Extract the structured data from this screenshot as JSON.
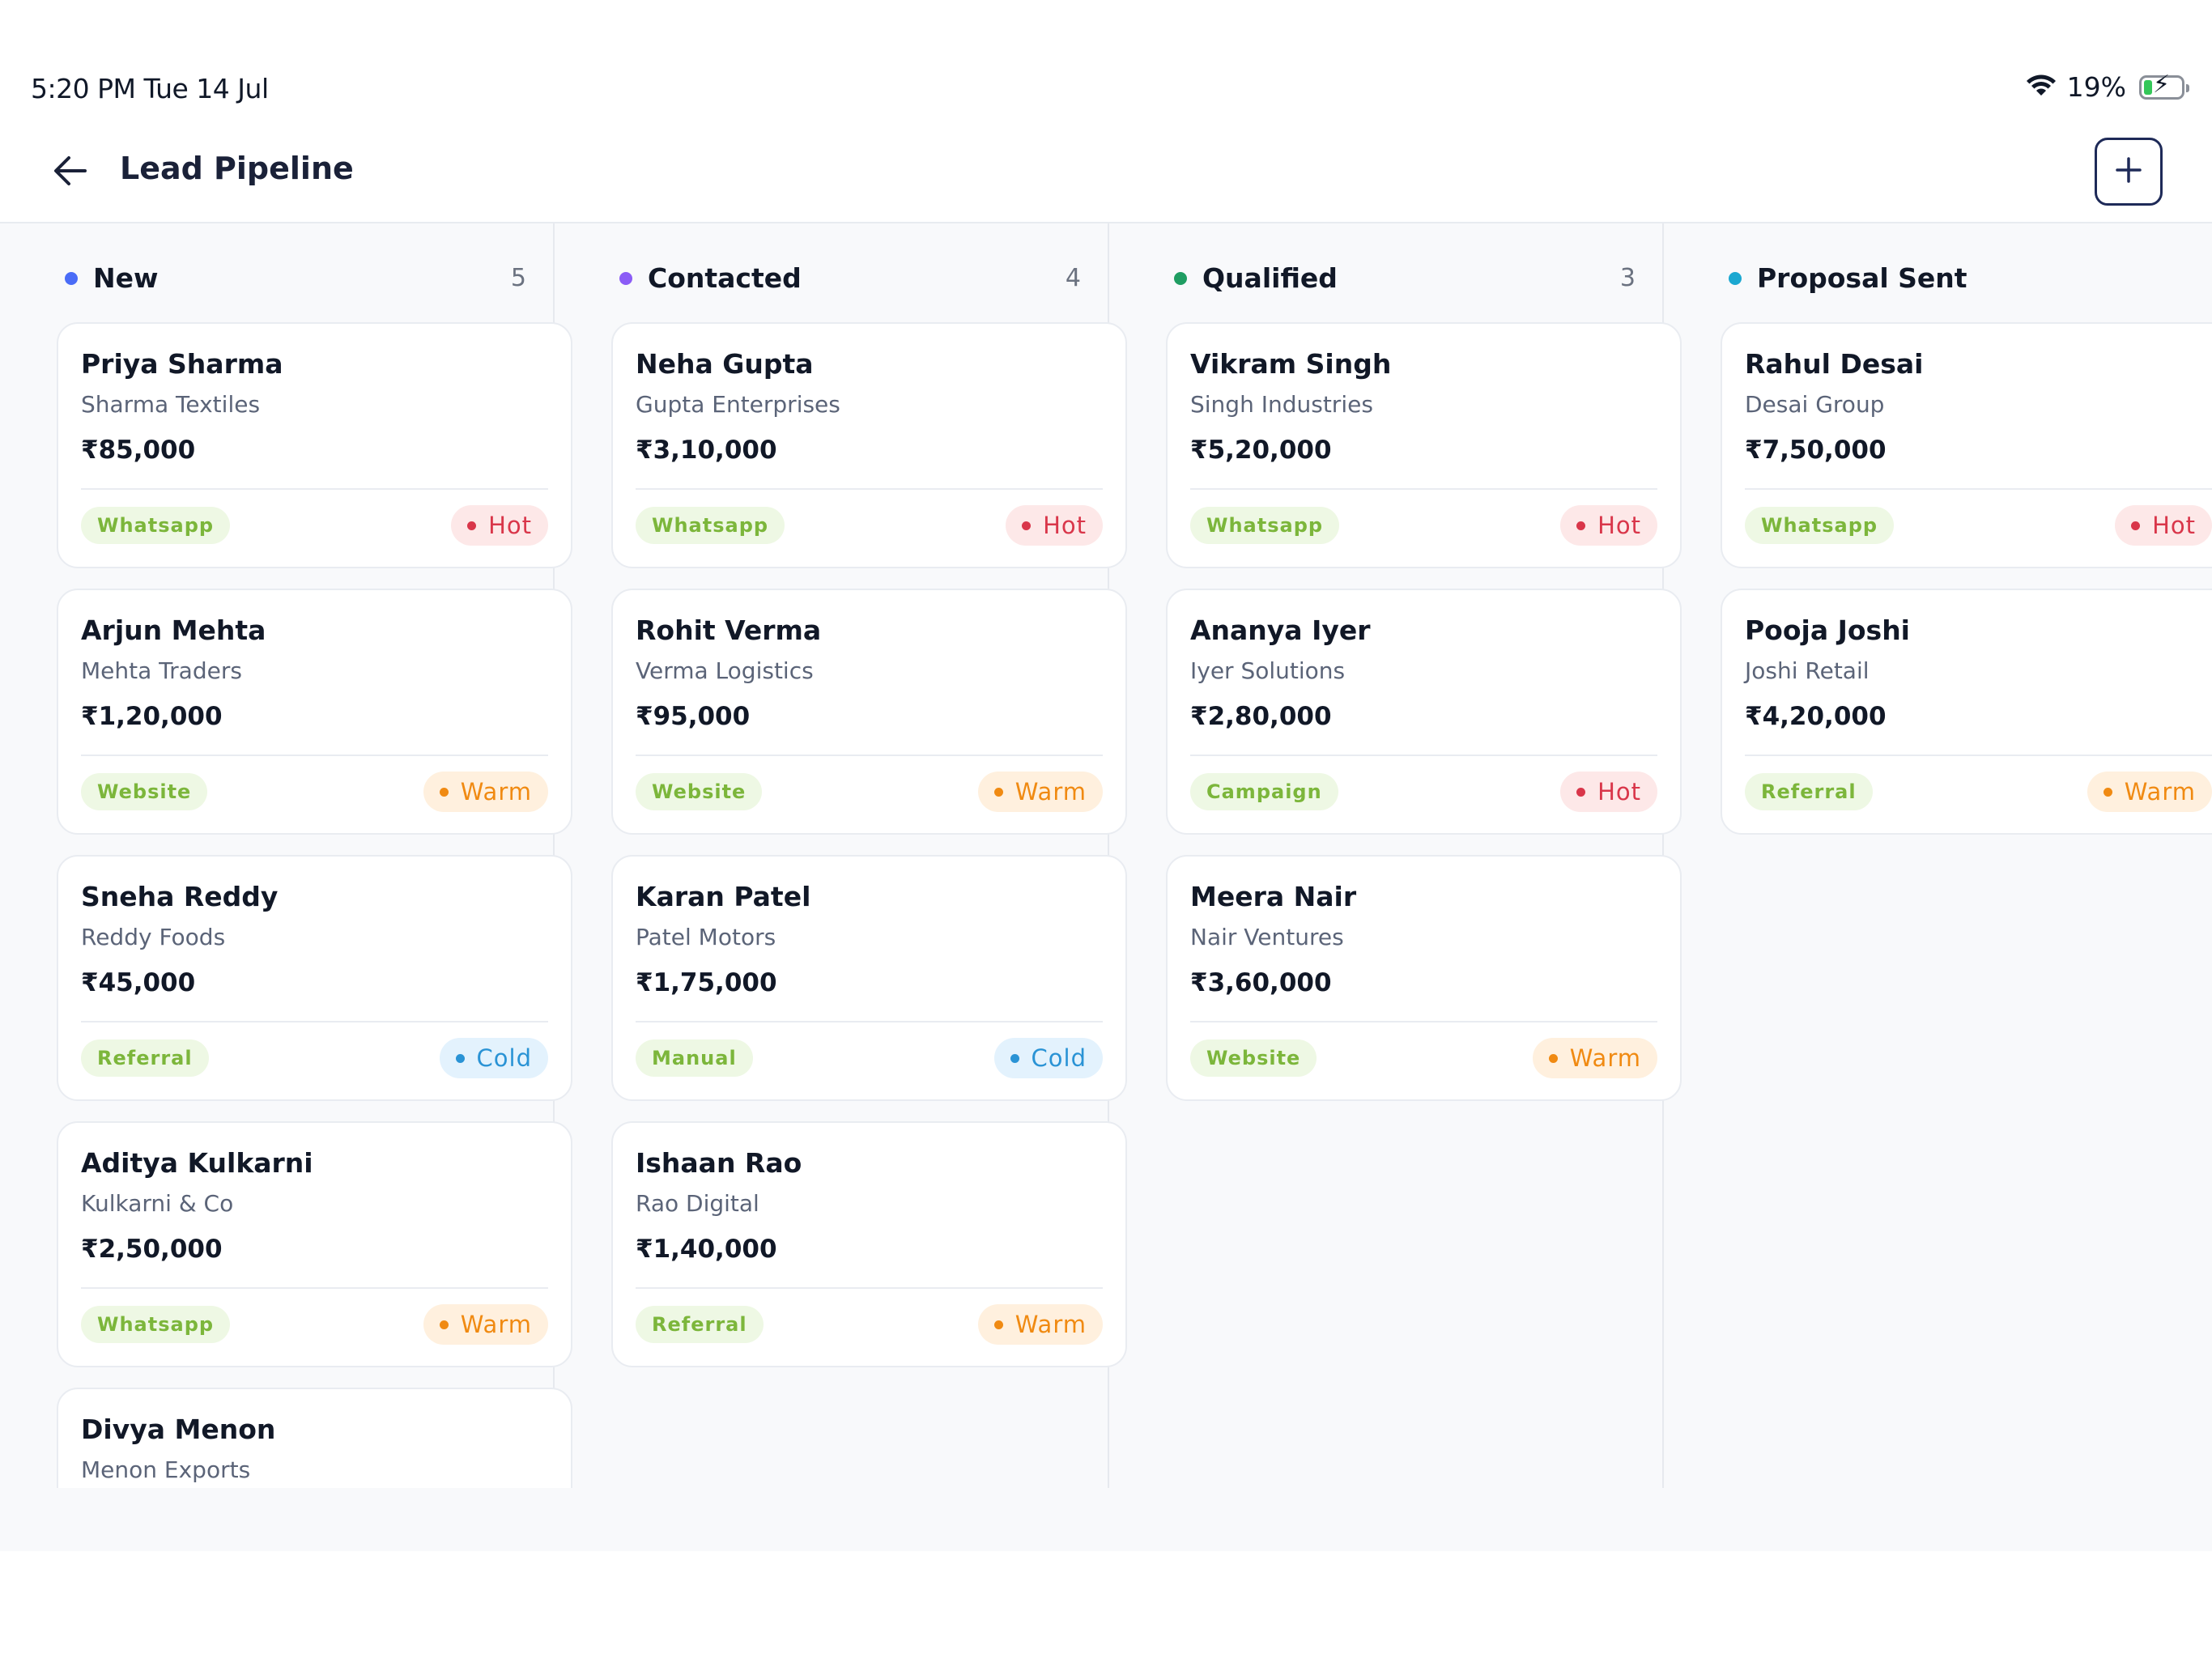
{
  "status_bar": {
    "time": "5:20 PM   Tue 14 Jul",
    "battery_percent": "19%",
    "battery_level": 0.19,
    "icons": [
      "wifi-icon",
      "battery-charging-icon"
    ]
  },
  "header": {
    "title": "Lead Pipeline",
    "back_icon": "arrow-left-icon",
    "add_icon": "plus-icon"
  },
  "colors": {
    "new": "#4a6cf7",
    "contacted": "#8b5cf6",
    "qualified": "#1f9d62",
    "proposal_sent": "#1ba8d1",
    "hot": "#d9364a",
    "warm": "#f08a12",
    "cold": "#2a93d5",
    "source": "#7cb63b"
  },
  "columns": [
    {
      "title": "New",
      "count": "5",
      "cards": [
        {
          "name": "Priya Sharma",
          "company": "Sharma Textiles",
          "value": "₹85,000",
          "source": "Whatsapp",
          "temperature": "Hot"
        },
        {
          "name": "Arjun Mehta",
          "company": "Mehta Traders",
          "value": "₹1,20,000",
          "source": "Website",
          "temperature": "Warm"
        },
        {
          "name": "Sneha Reddy",
          "company": "Reddy Foods",
          "value": "₹45,000",
          "source": "Referral",
          "temperature": "Cold"
        },
        {
          "name": "Aditya Kulkarni",
          "company": "Kulkarni & Co",
          "value": "₹2,50,000",
          "source": "Whatsapp",
          "temperature": "Warm"
        },
        {
          "name": "Divya Menon",
          "company": "Menon Exports"
        }
      ]
    },
    {
      "title": "Contacted",
      "count": "4",
      "cards": [
        {
          "name": "Neha Gupta",
          "company": "Gupta Enterprises",
          "value": "₹3,10,000",
          "source": "Whatsapp",
          "temperature": "Hot"
        },
        {
          "name": "Rohit Verma",
          "company": "Verma Logistics",
          "value": "₹95,000",
          "source": "Website",
          "temperature": "Warm"
        },
        {
          "name": "Karan Patel",
          "company": "Patel Motors",
          "value": "₹1,75,000",
          "source": "Manual",
          "temperature": "Cold"
        },
        {
          "name": "Ishaan Rao",
          "company": "Rao Digital",
          "value": "₹1,40,000",
          "source": "Referral",
          "temperature": "Warm"
        }
      ]
    },
    {
      "title": "Qualified",
      "count": "3",
      "cards": [
        {
          "name": "Vikram Singh",
          "company": "Singh Industries",
          "value": "₹5,20,000",
          "source": "Whatsapp",
          "temperature": "Hot"
        },
        {
          "name": "Ananya Iyer",
          "company": "Iyer Solutions",
          "value": "₹2,80,000",
          "source": "Campaign",
          "temperature": "Hot"
        },
        {
          "name": "Meera Nair",
          "company": "Nair Ventures",
          "value": "₹3,60,000",
          "source": "Website",
          "temperature": "Warm"
        }
      ]
    },
    {
      "title": "Proposal Sent",
      "count": "",
      "cards": [
        {
          "name": "Rahul Desai",
          "company": "Desai Group",
          "value": "₹7,50,000",
          "source": "Whatsapp",
          "temperature": "Hot"
        },
        {
          "name": "Pooja Joshi",
          "company": "Joshi Retail",
          "value": "₹4,20,000",
          "source": "Referral",
          "temperature": "Warm"
        }
      ]
    }
  ]
}
